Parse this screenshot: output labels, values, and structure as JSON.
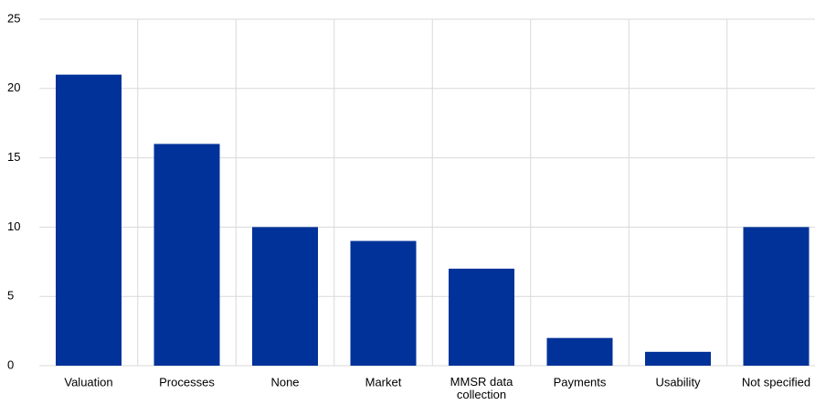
{
  "chart_data": {
    "type": "bar",
    "categories": [
      "Valuation",
      "Processes",
      "None",
      "Market",
      "MMSR data collection",
      "Payments",
      "Usability",
      "Not specified"
    ],
    "values": [
      21,
      16,
      10,
      9,
      7,
      2,
      1,
      10
    ],
    "color": "#003299",
    "ylim": [
      0,
      25
    ],
    "yticks": [
      0,
      5,
      10,
      15,
      20,
      25
    ],
    "grid": true
  }
}
